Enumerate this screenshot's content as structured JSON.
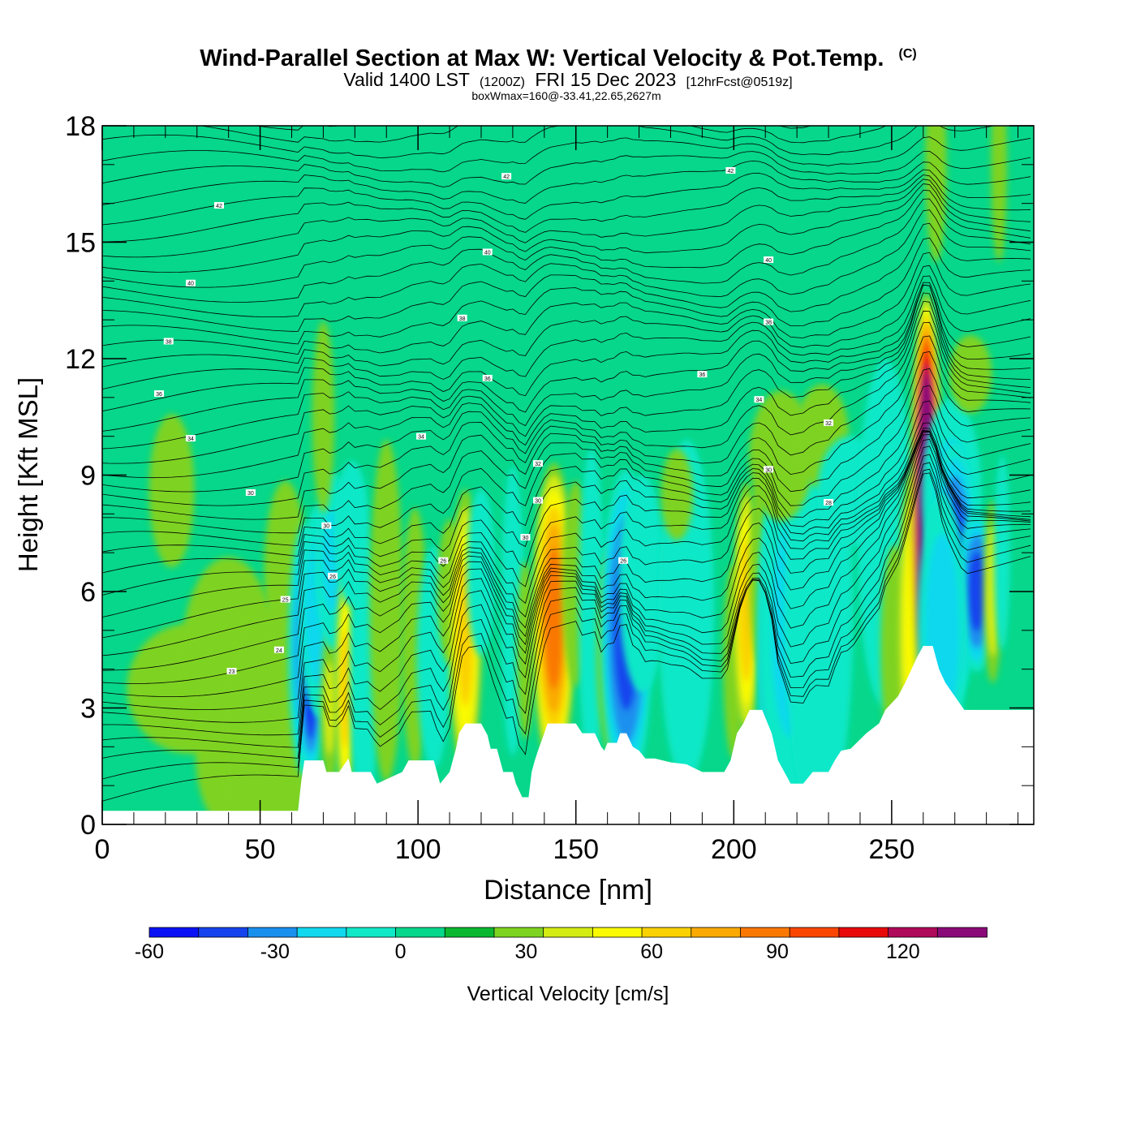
{
  "chart_data": {
    "type": "heatmap",
    "title": "Wind-Parallel Section at Max W: Vertical Velocity & Pot.Temp.",
    "title_suffix": "(C)",
    "subtitle": {
      "valid": "Valid 1400 LST",
      "zulu": "(1200Z)",
      "date": "FRI 15 Dec 2023",
      "forecast": "[12hrFcst@0519z]"
    },
    "box_info": "boxWmax=160@-33.41,22.65,2627m",
    "xlabel": "Distance [nm]",
    "ylabel": "Height [Kft MSL]",
    "xlim": [
      0,
      295
    ],
    "ylim": [
      0,
      18
    ],
    "x_ticks": [
      "0",
      "50",
      "100",
      "150",
      "200",
      "250"
    ],
    "y_ticks": [
      "0",
      "3",
      "6",
      "9",
      "12",
      "15",
      "18"
    ],
    "colorbar": {
      "label": "Vertical Velocity [cm/s]",
      "min": -60,
      "max": 140,
      "step": 10,
      "tick_labels": [
        "-60",
        "-30",
        "0",
        "30",
        "60",
        "90",
        "120"
      ],
      "colors": [
        "#0a12f5",
        "#1544ee",
        "#1a90ee",
        "#10d8ee",
        "#10e8c8",
        "#06d78a",
        "#0ab830",
        "#7ed320",
        "#d4ec12",
        "#fafa02",
        "#fad202",
        "#faaa02",
        "#fa7802",
        "#fa4602",
        "#e80a0a",
        "#b00a5a",
        "#8a0a78"
      ]
    },
    "background_w": 0,
    "terrain": [
      [
        0,
        0.35
      ],
      [
        62,
        0.35
      ],
      [
        63,
        1.1
      ],
      [
        64,
        1.65
      ],
      [
        70,
        1.65
      ],
      [
        71,
        1.35
      ],
      [
        75,
        1.35
      ],
      [
        78,
        1.7
      ],
      [
        79,
        1.35
      ],
      [
        85,
        1.35
      ],
      [
        87,
        1.05
      ],
      [
        95,
        1.35
      ],
      [
        97,
        1.65
      ],
      [
        105,
        1.65
      ],
      [
        107,
        1.05
      ],
      [
        110,
        1.35
      ],
      [
        112,
        1.95
      ],
      [
        113,
        2.35
      ],
      [
        115,
        2.6
      ],
      [
        120,
        2.6
      ],
      [
        122,
        2.3
      ],
      [
        123,
        1.95
      ],
      [
        125,
        1.95
      ],
      [
        127,
        1.35
      ],
      [
        130,
        1.35
      ],
      [
        131,
        1.05
      ],
      [
        133,
        0.7
      ],
      [
        135,
        0.7
      ],
      [
        136,
        1.35
      ],
      [
        137,
        1.65
      ],
      [
        138,
        1.9
      ],
      [
        140,
        2.35
      ],
      [
        141,
        2.6
      ],
      [
        150,
        2.6
      ],
      [
        152,
        2.35
      ],
      [
        156,
        2.35
      ],
      [
        158,
        2.0
      ],
      [
        159,
        1.9
      ],
      [
        160,
        2.1
      ],
      [
        163,
        2.1
      ],
      [
        164,
        2.35
      ],
      [
        166,
        2.35
      ],
      [
        168,
        2.0
      ],
      [
        170,
        1.9
      ],
      [
        172,
        1.7
      ],
      [
        175,
        1.7
      ],
      [
        180,
        1.6
      ],
      [
        185,
        1.55
      ],
      [
        190,
        1.35
      ],
      [
        197,
        1.35
      ],
      [
        199,
        1.65
      ],
      [
        201,
        2.35
      ],
      [
        203,
        2.6
      ],
      [
        205,
        2.95
      ],
      [
        209,
        2.95
      ],
      [
        212,
        2.35
      ],
      [
        214,
        1.65
      ],
      [
        216,
        1.35
      ],
      [
        218,
        1.05
      ],
      [
        222,
        1.05
      ],
      [
        225,
        1.35
      ],
      [
        230,
        1.35
      ],
      [
        232,
        1.65
      ],
      [
        234,
        1.9
      ],
      [
        237,
        1.95
      ],
      [
        242,
        2.35
      ],
      [
        246,
        2.6
      ],
      [
        248,
        2.95
      ],
      [
        252,
        3.3
      ],
      [
        254,
        3.6
      ],
      [
        256,
        3.95
      ],
      [
        258,
        4.3
      ],
      [
        260,
        4.6
      ],
      [
        263,
        4.6
      ],
      [
        265,
        4.0
      ],
      [
        267,
        3.65
      ],
      [
        270,
        3.3
      ],
      [
        273,
        2.95
      ],
      [
        280,
        2.95
      ],
      [
        295,
        2.95
      ]
    ],
    "w_cells": [
      {
        "x": 22,
        "z": 8.6,
        "sx": 4,
        "sz": 1.1,
        "w": 15
      },
      {
        "x": 28,
        "z": 3.5,
        "sx": 12,
        "sz": 1.0,
        "w": 12
      },
      {
        "x": 40,
        "z": 4.2,
        "sx": 9,
        "sz": 1.6,
        "w": 12
      },
      {
        "x": 42,
        "z": 1.8,
        "sx": 8,
        "sz": 1.3,
        "w": 10
      },
      {
        "x": 52,
        "z": 2.2,
        "sx": 8,
        "sz": 2.0,
        "w": 12
      },
      {
        "x": 58,
        "z": 6.5,
        "sx": 4,
        "sz": 1.4,
        "w": 12
      },
      {
        "x": 64,
        "z": 4.5,
        "sx": 2.5,
        "sz": 1.6,
        "w": -35
      },
      {
        "x": 66,
        "z": 3.4,
        "sx": 2.0,
        "sz": 1.0,
        "w": -50
      },
      {
        "x": 69,
        "z": 5.5,
        "sx": 3.5,
        "sz": 1.4,
        "w": -25
      },
      {
        "x": 72,
        "z": 3.0,
        "sx": 1.5,
        "sz": 1.1,
        "w": 20
      },
      {
        "x": 73,
        "z": 6.8,
        "sx": 3.0,
        "sz": 1.2,
        "w": -20
      },
      {
        "x": 77,
        "z": 3.5,
        "sx": 1.5,
        "sz": 1.5,
        "w": 45
      },
      {
        "x": 79,
        "z": 7.5,
        "sx": 3.0,
        "sz": 1.0,
        "w": -18
      },
      {
        "x": 83,
        "z": 3.8,
        "sx": 2.5,
        "sz": 2.0,
        "w": -15
      },
      {
        "x": 90,
        "z": 5.5,
        "sx": 3.0,
        "sz": 2.5,
        "w": 14
      },
      {
        "x": 70,
        "z": 10.5,
        "sx": 2.0,
        "sz": 1.4,
        "w": 14
      },
      {
        "x": 99,
        "z": 4.8,
        "sx": 2.5,
        "sz": 2.0,
        "w": 12
      },
      {
        "x": 105,
        "z": 4.3,
        "sx": 3.0,
        "sz": 1.6,
        "w": -15
      },
      {
        "x": 110,
        "z": 6.0,
        "sx": 2.5,
        "sz": 1.2,
        "w": 10
      },
      {
        "x": 115,
        "z": 4.9,
        "sx": 2.5,
        "sz": 1.8,
        "w": 45
      },
      {
        "x": 120,
        "z": 6.5,
        "sx": 2.5,
        "sz": 1.2,
        "w": -15
      },
      {
        "x": 130,
        "z": 5.5,
        "sx": 2.0,
        "sz": 2.0,
        "w": -18
      },
      {
        "x": 134,
        "z": 4.5,
        "sx": 1.5,
        "sz": 1.3,
        "w": 14
      },
      {
        "x": 143,
        "z": 5.3,
        "sx": 3.2,
        "sz": 1.9,
        "w": 68
      },
      {
        "x": 150,
        "z": 6.2,
        "sx": 2.5,
        "sz": 1.5,
        "w": 14
      },
      {
        "x": 155,
        "z": 5.5,
        "sx": 2.5,
        "sz": 2.5,
        "w": -12
      },
      {
        "x": 161,
        "z": 4.5,
        "sx": 2.5,
        "sz": 1.5,
        "w": 14
      },
      {
        "x": 166,
        "z": 5.0,
        "sx": 4.0,
        "sz": 2.0,
        "w": -45
      },
      {
        "x": 171,
        "z": 6.2,
        "sx": 4.0,
        "sz": 1.5,
        "w": -18
      },
      {
        "x": 185,
        "z": 5.5,
        "sx": 5.0,
        "sz": 2.5,
        "w": -14
      },
      {
        "x": 182,
        "z": 8.5,
        "sx": 3.0,
        "sz": 0.7,
        "w": 12
      },
      {
        "x": 200,
        "z": 4.2,
        "sx": 2.0,
        "sz": 1.5,
        "w": 12
      },
      {
        "x": 204,
        "z": 5.5,
        "sx": 2.0,
        "sz": 1.6,
        "w": 48
      },
      {
        "x": 208,
        "z": 6.5,
        "sx": 2.0,
        "sz": 1.5,
        "w": 10
      },
      {
        "x": 212,
        "z": 4.5,
        "sx": 2.0,
        "sz": 1.8,
        "w": -50
      },
      {
        "x": 218,
        "z": 5.0,
        "sx": 5.5,
        "sz": 2.5,
        "w": -20
      },
      {
        "x": 227,
        "z": 5.5,
        "sx": 6.0,
        "sz": 3.0,
        "w": -16
      },
      {
        "x": 215,
        "z": 9.5,
        "sx": 6.0,
        "sz": 1.0,
        "w": 12
      },
      {
        "x": 228,
        "z": 10.0,
        "sx": 5.0,
        "sz": 0.8,
        "w": 12
      },
      {
        "x": 237,
        "z": 8.6,
        "sx": 6.0,
        "sz": 0.8,
        "w": -14
      },
      {
        "x": 248,
        "z": 7.5,
        "sx": 5.0,
        "sz": 2.5,
        "w": -15
      },
      {
        "x": 251,
        "z": 4.5,
        "sx": 2.5,
        "sz": 1.5,
        "w": 15
      },
      {
        "x": 256,
        "z": 5.0,
        "sx": 2.0,
        "sz": 2.0,
        "w": 35
      },
      {
        "x": 261,
        "z": 8.1,
        "sx": 2.3,
        "sz": 2.6,
        "w": 150
      },
      {
        "x": 269,
        "z": 8.5,
        "sx": 5.0,
        "sz": 1.3,
        "w": -20
      },
      {
        "x": 270,
        "z": 6.5,
        "sx": 3.5,
        "sz": 1.6,
        "w": -50
      },
      {
        "x": 277,
        "z": 6.0,
        "sx": 3.0,
        "sz": 1.0,
        "w": -45
      },
      {
        "x": 266,
        "z": 5.0,
        "sx": 4.0,
        "sz": 1.8,
        "w": -25
      },
      {
        "x": 282,
        "z": 6.0,
        "sx": 1.5,
        "sz": 1.2,
        "w": 25
      },
      {
        "x": 285,
        "z": 7.0,
        "sx": 1.5,
        "sz": 1.5,
        "w": -12
      },
      {
        "x": 275,
        "z": 11.6,
        "sx": 4.0,
        "sz": 0.6,
        "w": 12
      },
      {
        "x": 264,
        "z": 17.0,
        "sx": 2.0,
        "sz": 1.5,
        "w": 12
      },
      {
        "x": 284,
        "z": 17.0,
        "sx": 1.5,
        "sz": 1.5,
        "w": 12
      }
    ],
    "theta_label_list": [
      {
        "x": 37,
        "z": 15.95,
        "text": "42"
      },
      {
        "x": 128,
        "z": 16.7,
        "text": "42"
      },
      {
        "x": 199,
        "z": 16.85,
        "text": "42"
      },
      {
        "x": 122,
        "z": 14.75,
        "text": "40"
      },
      {
        "x": 28,
        "z": 13.95,
        "text": "40"
      },
      {
        "x": 211,
        "z": 14.55,
        "text": "40"
      },
      {
        "x": 114,
        "z": 13.05,
        "text": "38"
      },
      {
        "x": 21,
        "z": 12.45,
        "text": "38"
      },
      {
        "x": 211,
        "z": 12.95,
        "text": "38"
      },
      {
        "x": 18,
        "z": 11.1,
        "text": "36"
      },
      {
        "x": 122,
        "z": 11.5,
        "text": "36"
      },
      {
        "x": 190,
        "z": 11.6,
        "text": "36"
      },
      {
        "x": 208,
        "z": 10.95,
        "text": "34"
      },
      {
        "x": 28,
        "z": 9.95,
        "text": "34"
      },
      {
        "x": 101,
        "z": 10.0,
        "text": "34"
      },
      {
        "x": 230,
        "z": 10.35,
        "text": "32"
      },
      {
        "x": 138,
        "z": 9.3,
        "text": "32"
      },
      {
        "x": 211,
        "z": 9.15,
        "text": "30"
      },
      {
        "x": 47,
        "z": 8.55,
        "text": "30"
      },
      {
        "x": 138,
        "z": 8.35,
        "text": "30"
      },
      {
        "x": 230,
        "z": 8.3,
        "text": "28"
      },
      {
        "x": 71,
        "z": 7.7,
        "text": "30"
      },
      {
        "x": 134,
        "z": 7.4,
        "text": "30"
      },
      {
        "x": 108,
        "z": 6.8,
        "text": "26"
      },
      {
        "x": 165,
        "z": 6.8,
        "text": "26"
      },
      {
        "x": 73,
        "z": 6.4,
        "text": "26"
      },
      {
        "x": 58,
        "z": 5.8,
        "text": "25"
      },
      {
        "x": 56,
        "z": 4.5,
        "text": "24"
      },
      {
        "x": 41,
        "z": 3.95,
        "text": "23"
      }
    ]
  }
}
